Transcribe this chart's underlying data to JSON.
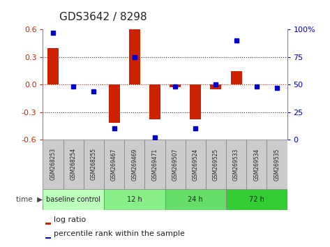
{
  "title": "GDS3642 / 8298",
  "samples": [
    "GSM268253",
    "GSM268254",
    "GSM268255",
    "GSM269467",
    "GSM269469",
    "GSM269471",
    "GSM269507",
    "GSM269524",
    "GSM269525",
    "GSM269533",
    "GSM269534",
    "GSM269535"
  ],
  "log_ratio": [
    0.4,
    0.0,
    0.0,
    -0.42,
    0.6,
    -0.38,
    -0.03,
    -0.38,
    -0.05,
    0.15,
    0.0,
    0.0
  ],
  "percentile_rank": [
    97,
    48,
    44,
    10,
    75,
    2,
    48,
    10,
    50,
    90,
    48,
    47
  ],
  "bar_color": "#cc2200",
  "dot_color": "#0000cc",
  "ylim_left": [
    -0.6,
    0.6
  ],
  "ylim_right": [
    0,
    100
  ],
  "yticks_left": [
    -0.6,
    -0.3,
    0.0,
    0.3,
    0.6
  ],
  "yticks_right": [
    0,
    25,
    50,
    75,
    100
  ],
  "ytick_labels_right": [
    "0",
    "25",
    "50",
    "75",
    "100%"
  ],
  "dotted_lines_black": [
    -0.3,
    0.3
  ],
  "dotted_line_red": 0.0,
  "groups": [
    {
      "label": "baseline control",
      "start": 0,
      "end": 3,
      "color": "#bbffbb"
    },
    {
      "label": "12 h",
      "start": 3,
      "end": 6,
      "color": "#88ee88"
    },
    {
      "label": "24 h",
      "start": 6,
      "end": 9,
      "color": "#66dd66"
    },
    {
      "label": "72 h",
      "start": 9,
      "end": 12,
      "color": "#33cc33"
    }
  ],
  "legend_bar_label": "log ratio",
  "legend_dot_label": "percentile rank within the sample",
  "background_color": "#ffffff",
  "sample_box_bg": "#cccccc",
  "sample_box_edge": "#888888"
}
